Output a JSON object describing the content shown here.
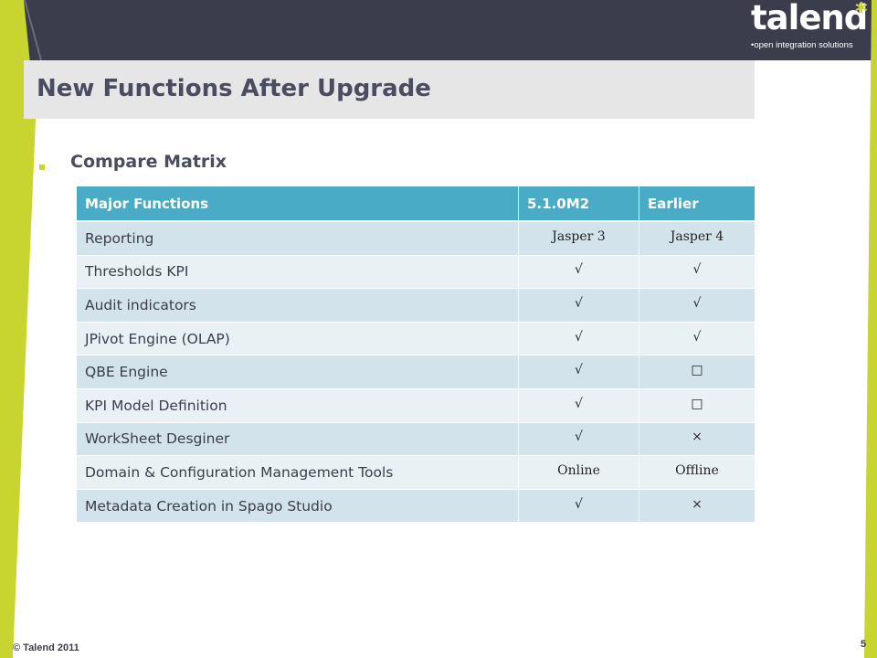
{
  "colors": {
    "frame_dark": "#3b3d4c",
    "accent_green": "#c8d531",
    "header_blue": "#4aabc6",
    "row_odd": "#d3e3ec",
    "row_even": "#e9f1f5",
    "title_text": "#4a4c5f",
    "title_band": "#e6e6e6"
  },
  "logo": {
    "word": "talend",
    "star": "*",
    "tagline": "•open integration solutions"
  },
  "slide": {
    "title": "New Functions After Upgrade",
    "bullet": "Compare Matrix"
  },
  "table": {
    "headers": [
      "Major Functions",
      "5.1.0M2",
      "Earlier"
    ],
    "rows": [
      [
        "Reporting",
        "Jasper 3",
        "Jasper 4"
      ],
      [
        "Thresholds KPI",
        "√",
        "√"
      ],
      [
        "Audit indicators",
        "√",
        "√"
      ],
      [
        "JPivot Engine (OLAP)",
        "√",
        "√"
      ],
      [
        "QBE Engine",
        "√",
        "□"
      ],
      [
        "KPI Model Definition",
        "√",
        "□"
      ],
      [
        "WorkSheet Desginer",
        "√",
        "×"
      ],
      [
        "Domain & Configuration Management Tools",
        "Online",
        "Offline"
      ],
      [
        "Metadata Creation in Spago Studio",
        "√",
        "×"
      ]
    ]
  },
  "footer": {
    "copyright": "© Talend 2011",
    "page_number": "5"
  }
}
